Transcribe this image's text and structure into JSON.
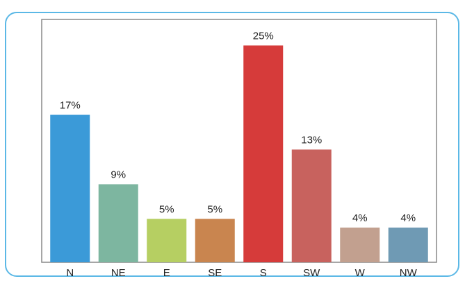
{
  "chart_data": {
    "type": "bar",
    "categories": [
      "N",
      "NE",
      "E",
      "SE",
      "S",
      "SW",
      "W",
      "NW"
    ],
    "values": [
      17,
      9,
      5,
      5,
      25,
      13,
      4,
      4
    ],
    "value_labels": [
      "17%",
      "9%",
      "5%",
      "5%",
      "25%",
      "13%",
      "4%",
      "4%"
    ],
    "colors": [
      "#3b9ad8",
      "#7db6a0",
      "#b6cf62",
      "#c9854f",
      "#d63b3a",
      "#c8625e",
      "#c2a08f",
      "#6f9ab4"
    ],
    "ylim": [
      0,
      28
    ]
  }
}
